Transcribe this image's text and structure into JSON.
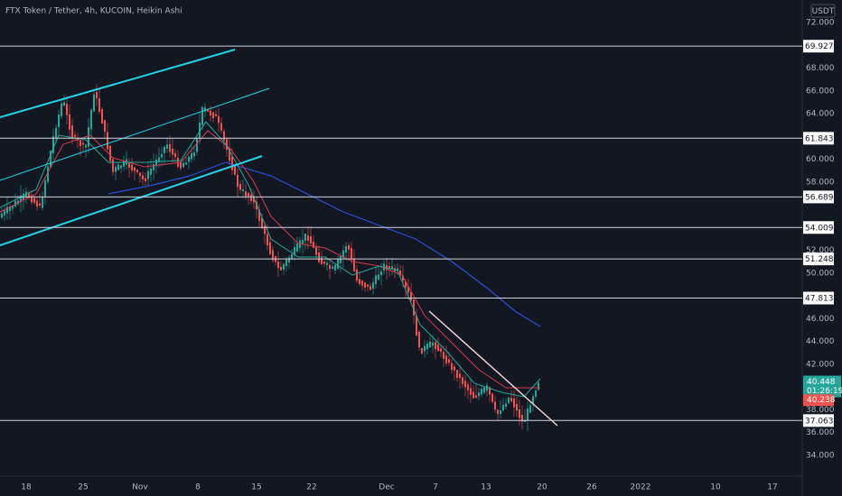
{
  "header": {
    "title": "FTX Token / Tether, 4h, KUCOIN, Heikin Ashi",
    "currency": "USDT"
  },
  "y_axis": {
    "ylim": [
      34.0,
      72.0
    ],
    "ticks": [
      {
        "value": 72,
        "label": "72.000"
      },
      {
        "value": 68,
        "label": "68.000"
      },
      {
        "value": 66,
        "label": "66.000"
      },
      {
        "value": 64,
        "label": "64.000"
      },
      {
        "value": 60,
        "label": "60.000"
      },
      {
        "value": 58,
        "label": "58.000"
      },
      {
        "value": 52,
        "label": "52.000"
      },
      {
        "value": 50,
        "label": "50.000"
      },
      {
        "value": 46,
        "label": "46.000"
      },
      {
        "value": 44,
        "label": "44.000"
      },
      {
        "value": 42,
        "label": "42.000"
      },
      {
        "value": 38,
        "label": "38.000"
      },
      {
        "value": 36,
        "label": "36.000"
      },
      {
        "value": 34,
        "label": "34.000"
      }
    ]
  },
  "levels": [
    {
      "value": 69.927,
      "label": "69.927"
    },
    {
      "value": 61.843,
      "label": "61.843"
    },
    {
      "value": 56.689,
      "label": "56.689"
    },
    {
      "value": 54.009,
      "label": "54.009"
    },
    {
      "value": 51.248,
      "label": "51.248"
    },
    {
      "value": 47.813,
      "label": "47.813"
    },
    {
      "value": 37.063,
      "label": "37.063"
    }
  ],
  "last_price": {
    "value": 40.448,
    "label": "40.448",
    "countdown": "01:26:19"
  },
  "prev_price": {
    "value": 40.238,
    "label": "40.238"
  },
  "x_axis": {
    "labels": [
      "18",
      "25",
      "Nov",
      "8",
      "15",
      "22",
      "Dec",
      "7",
      "13",
      "20",
      "26",
      "2022",
      "10",
      "17"
    ]
  }
}
